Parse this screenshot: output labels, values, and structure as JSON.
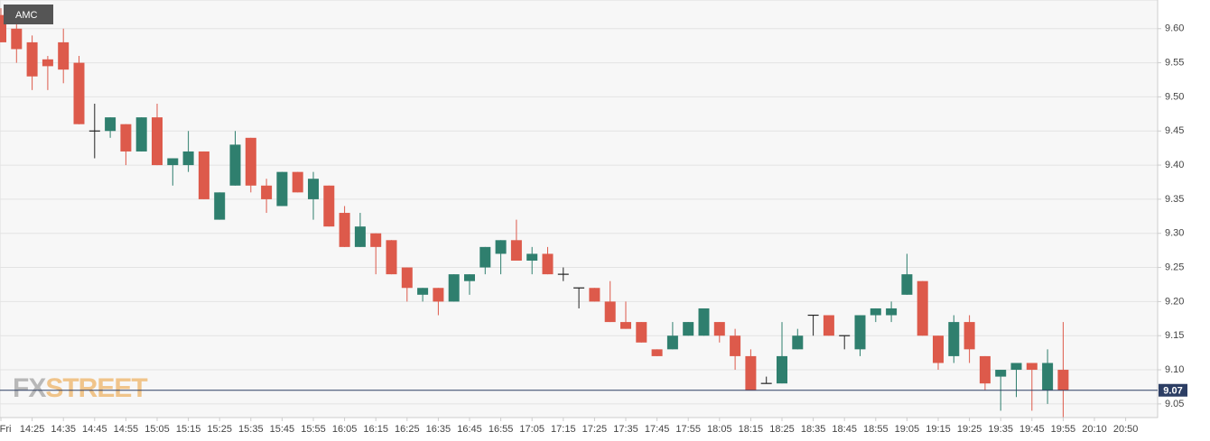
{
  "chart_data": {
    "type": "candlestick",
    "symbol": "AMC",
    "watermark": {
      "prefix": "FX",
      "suffix": "STREET"
    },
    "categories": [
      "Fri",
      null,
      "14:25",
      null,
      "14:35",
      null,
      "14:45",
      null,
      "14:55",
      null,
      "15:05",
      null,
      "15:15",
      null,
      "15:25",
      null,
      "15:35",
      null,
      "15:45",
      null,
      "15:55",
      null,
      "16:05",
      null,
      "16:15",
      null,
      "16:25",
      null,
      "16:35",
      null,
      "16:45",
      null,
      "16:55",
      null,
      "17:05",
      null,
      "17:15",
      null,
      "17:25",
      null,
      "17:35",
      null,
      "17:45",
      null,
      "17:55",
      null,
      "18:05",
      null,
      "18:15",
      null,
      "18:25",
      null,
      "18:35",
      null,
      "18:45",
      null,
      "18:55",
      null,
      "19:05",
      null,
      "19:15",
      null,
      "19:25",
      null,
      "19:35",
      null,
      "19:45",
      null,
      "19:55",
      null,
      "20:10",
      null,
      "20:50"
    ],
    "open": [
      9.62,
      9.6,
      9.58,
      9.555,
      9.58,
      9.55,
      9.45,
      9.45,
      9.46,
      9.42,
      9.47,
      9.4,
      9.4,
      9.42,
      9.32,
      9.37,
      9.44,
      9.37,
      9.34,
      9.39,
      9.35,
      9.37,
      9.33,
      9.28,
      9.3,
      9.29,
      9.25,
      9.21,
      9.22,
      9.2,
      9.23,
      9.25,
      9.27,
      9.29,
      9.26,
      9.27,
      9.24,
      9.22,
      9.22,
      9.2,
      9.17,
      9.17,
      9.13,
      9.13,
      9.15,
      9.15,
      9.17,
      9.15,
      9.12,
      9.08,
      9.08,
      9.13,
      9.18,
      9.18,
      9.15,
      9.13,
      9.18,
      9.18,
      9.21,
      9.23,
      9.15,
      9.12,
      9.17,
      9.12,
      9.09,
      9.1,
      9.11,
      9.07,
      9.1,
      null,
      null,
      null,
      null
    ],
    "high": [
      9.63,
      9.61,
      9.59,
      9.56,
      9.6,
      9.56,
      9.49,
      9.47,
      9.46,
      9.47,
      9.49,
      9.41,
      9.45,
      9.42,
      9.36,
      9.45,
      9.44,
      9.38,
      9.39,
      9.39,
      9.39,
      9.37,
      9.34,
      9.33,
      9.3,
      9.29,
      9.25,
      9.22,
      9.22,
      9.24,
      9.24,
      9.28,
      9.29,
      9.32,
      9.28,
      9.28,
      9.25,
      9.22,
      9.22,
      9.23,
      9.2,
      9.17,
      9.13,
      9.17,
      9.17,
      9.19,
      9.17,
      9.16,
      9.13,
      9.09,
      9.17,
      9.16,
      9.18,
      9.18,
      9.15,
      9.18,
      9.19,
      9.2,
      9.27,
      9.23,
      9.15,
      9.18,
      9.18,
      9.12,
      9.1,
      9.11,
      9.11,
      9.13,
      9.17,
      null,
      null,
      null,
      null
    ],
    "low": [
      9.58,
      9.55,
      9.51,
      9.51,
      9.52,
      9.46,
      9.41,
      9.44,
      9.4,
      9.42,
      9.4,
      9.37,
      9.39,
      9.35,
      9.32,
      9.37,
      9.36,
      9.33,
      9.34,
      9.36,
      9.32,
      9.31,
      9.28,
      9.28,
      9.24,
      9.24,
      9.2,
      9.2,
      9.18,
      9.2,
      9.21,
      9.24,
      9.24,
      9.26,
      9.24,
      9.24,
      9.23,
      9.19,
      9.2,
      9.17,
      9.16,
      9.14,
      9.12,
      9.13,
      9.15,
      9.15,
      9.14,
      9.1,
      9.07,
      9.08,
      9.08,
      9.13,
      9.15,
      9.15,
      9.13,
      9.12,
      9.17,
      9.17,
      9.21,
      9.15,
      9.1,
      9.11,
      9.11,
      9.07,
      9.04,
      9.06,
      9.04,
      9.05,
      9.03,
      null,
      null,
      null,
      null
    ],
    "close": [
      9.58,
      9.57,
      9.53,
      9.545,
      9.54,
      9.46,
      9.45,
      9.47,
      9.42,
      9.47,
      9.4,
      9.41,
      9.42,
      9.35,
      9.36,
      9.43,
      9.37,
      9.35,
      9.39,
      9.36,
      9.38,
      9.31,
      9.28,
      9.31,
      9.28,
      9.24,
      9.22,
      9.22,
      9.2,
      9.24,
      9.24,
      9.28,
      9.29,
      9.26,
      9.27,
      9.24,
      9.24,
      9.22,
      9.2,
      9.17,
      9.16,
      9.14,
      9.12,
      9.15,
      9.17,
      9.19,
      9.15,
      9.12,
      9.07,
      9.08,
      9.12,
      9.15,
      9.18,
      9.15,
      9.15,
      9.18,
      9.19,
      9.19,
      9.24,
      9.15,
      9.11,
      9.17,
      9.13,
      9.08,
      9.1,
      9.11,
      9.1,
      9.11,
      9.07,
      null,
      null,
      null,
      null
    ],
    "up_color": "#2f7f6e",
    "down_color": "#dd5a4b",
    "flat_color": "#222222",
    "last_price": 9.07,
    "ylim": [
      9.03,
      9.642
    ],
    "yticks": [
      9.05,
      {
        "value": 9.1,
        "label": "9.10"
      },
      9.15,
      {
        "value": 9.2,
        "label": "9.20"
      },
      9.25,
      {
        "value": 9.3,
        "label": "9.30"
      },
      9.35,
      {
        "value": 9.4,
        "label": "9.40"
      },
      9.45,
      {
        "value": 9.5,
        "label": "9.50"
      },
      9.55,
      {
        "value": 9.6,
        "label": "9.60"
      }
    ],
    "grid": true
  }
}
